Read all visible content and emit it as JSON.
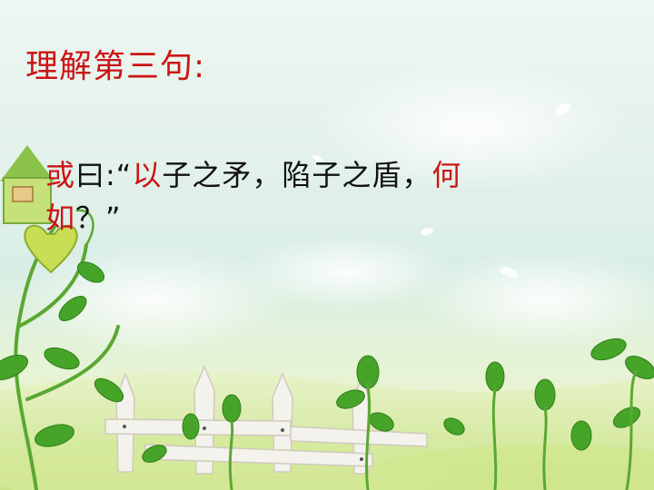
{
  "slide": {
    "title": "理解第三句:",
    "sentence": [
      {
        "text": "或",
        "color": "#cc1414",
        "highlight": true
      },
      {
        "text": "曰:“",
        "color": "#111111",
        "highlight": false
      },
      {
        "text": "以",
        "color": "#cc1414",
        "highlight": true
      },
      {
        "text": "子之矛，陷子之盾，",
        "color": "#111111",
        "highlight": false
      },
      {
        "text": "何",
        "color": "#cc1414",
        "highlight": true
      },
      {
        "text": "如",
        "color": "#cc1414",
        "highlight": true
      },
      {
        "text": "？”",
        "color": "#111111",
        "highlight": false
      }
    ]
  },
  "background": {
    "description_icons": [
      "vine-icon",
      "fence-icon",
      "birdhouse-icon",
      "leaf-icon",
      "cloud-icon"
    ],
    "colors": {
      "sky": "#e2f1ea",
      "grass": "#c9e38a",
      "leaf": "#4cae2a",
      "fence": "#f2f0ea",
      "title_red": "#cc1414"
    }
  }
}
